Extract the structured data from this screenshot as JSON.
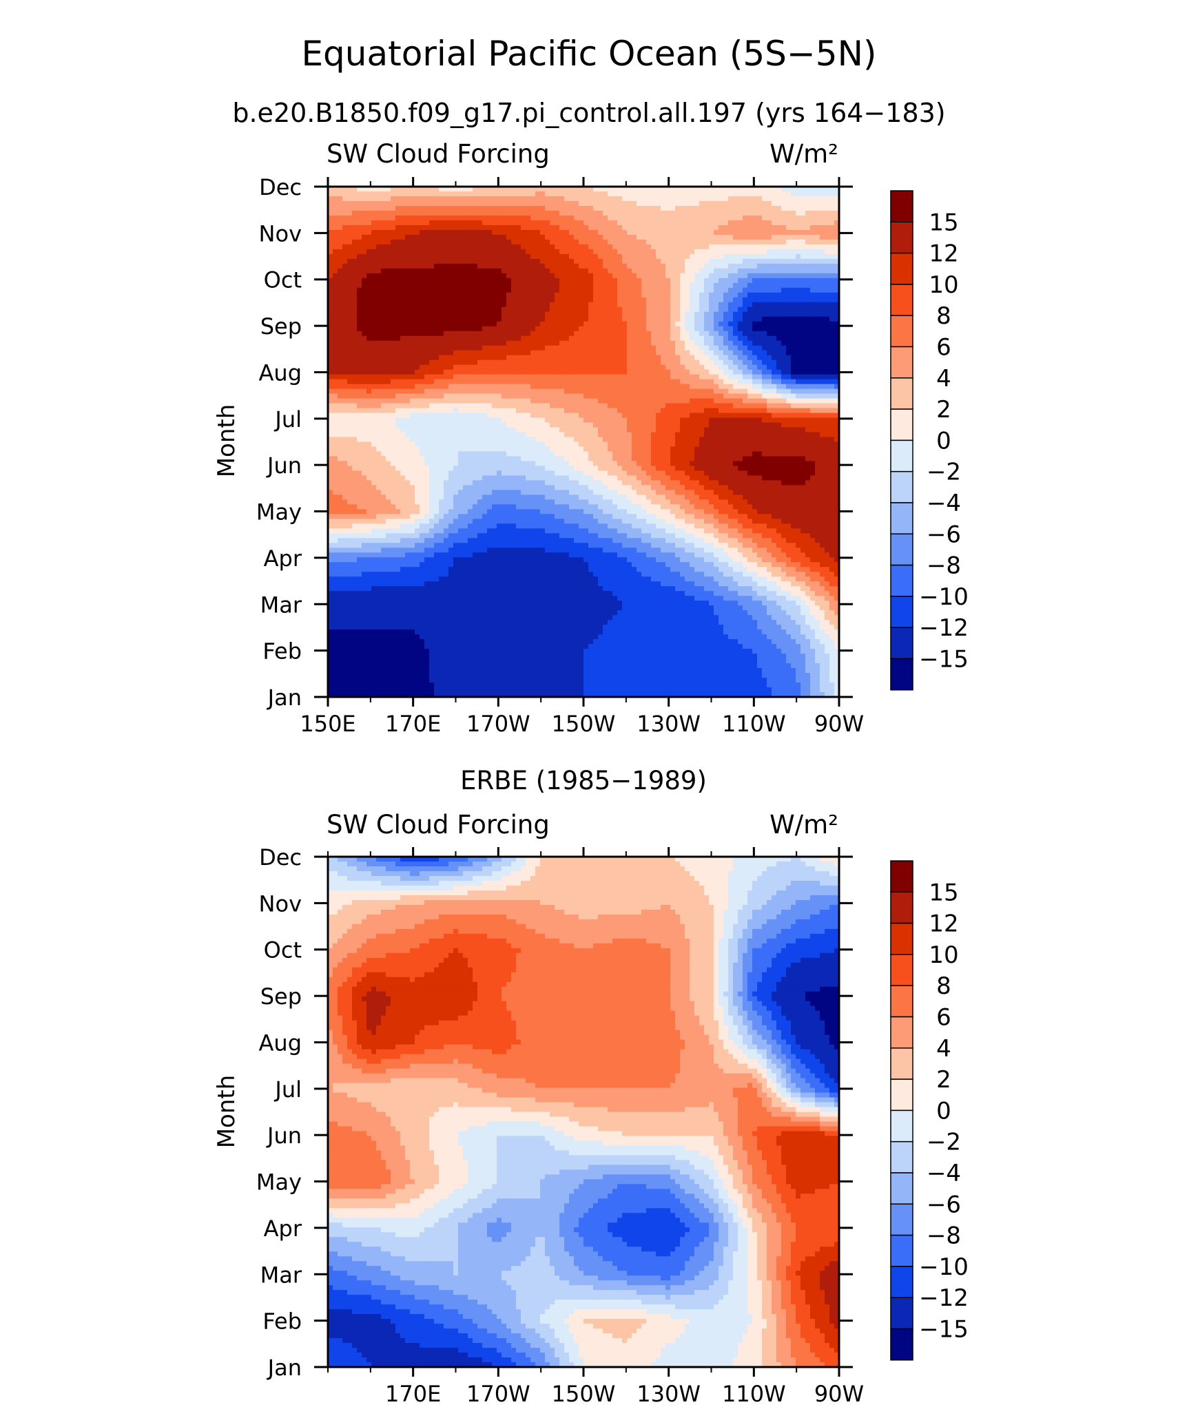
{
  "figure": {
    "title": "Equatorial Pacific Ocean (5S−5N)",
    "subtitle": "b.e20.B1850.f09_g17.pi_control.all.197 (yrs 164−183)"
  },
  "colorbar": {
    "labels": [
      "15",
      "12",
      "10",
      "8",
      "6",
      "4",
      "2",
      "0",
      "−2",
      "−4",
      "−6",
      "−8",
      "−10",
      "−12",
      "−15"
    ],
    "levels": [
      15,
      12,
      10,
      8,
      6,
      4,
      2,
      0,
      -2,
      -4,
      -6,
      -8,
      -10,
      -12,
      -15
    ],
    "colors": [
      "#800000",
      "#b01e0b",
      "#d93100",
      "#f8501c",
      "#fb7545",
      "#fc9b76",
      "#fdc5a5",
      "#feeade",
      "#dcebf9",
      "#bdd4fa",
      "#94b5f7",
      "#6692f7",
      "#3a6ef8",
      "#0f45ea",
      "#0a27b5",
      "#000584"
    ]
  },
  "chart_data": [
    {
      "type": "heatmap",
      "title": "",
      "left_label": "SW Cloud Forcing",
      "units_label": "W/m²",
      "xlabel": "",
      "ylabel": "Month",
      "x_ticklabels": [
        "150E",
        "170E",
        "170W",
        "150W",
        "130W",
        "110W",
        "90W"
      ],
      "x_tick_lon": [
        150,
        170,
        190,
        210,
        230,
        250,
        270
      ],
      "y_ticklabels": [
        "Jan",
        "Feb",
        "Mar",
        "Apr",
        "May",
        "Jun",
        "Jul",
        "Aug",
        "Sep",
        "Oct",
        "Nov",
        "Dec"
      ],
      "xlim_lon": [
        150,
        270
      ],
      "ylim_month": [
        1,
        12
      ],
      "grid_lon": [
        150,
        160,
        170,
        180,
        190,
        200,
        210,
        220,
        230,
        240,
        250,
        260,
        270
      ],
      "grid_month": [
        "Jan",
        "Feb",
        "Mar",
        "Apr",
        "May",
        "Jun",
        "Jul",
        "Aug",
        "Sep",
        "Oct",
        "Nov",
        "Dec"
      ],
      "values": [
        [
          -16,
          -16,
          -16,
          -14,
          -13,
          -13,
          -12,
          -12,
          -12,
          -12,
          -11,
          -9,
          -1
        ],
        [
          -16,
          -16,
          -16,
          -13,
          -13,
          -12,
          -12,
          -11,
          -11,
          -11,
          -10,
          -7,
          0
        ],
        [
          -14,
          -14,
          -14,
          -13,
          -13,
          -13,
          -13,
          -12,
          -12,
          -10,
          -7,
          -2,
          6
        ],
        [
          -7,
          -8,
          -9,
          -12,
          -13,
          -13,
          -12,
          -10,
          -7,
          -3,
          3,
          9,
          13
        ],
        [
          7,
          6,
          3,
          -5,
          -9,
          -8,
          -6,
          -2,
          2,
          7,
          12,
          14,
          14
        ],
        [
          5,
          3,
          1,
          -2,
          -3,
          -2,
          1,
          5,
          10,
          14,
          16,
          16,
          14
        ],
        [
          0,
          1,
          -1,
          -2,
          0,
          2,
          4,
          6,
          9,
          12,
          12,
          11,
          10
        ],
        [
          12,
          13,
          12,
          9,
          8,
          8,
          8,
          8,
          6,
          2,
          -6,
          -16,
          -16
        ],
        [
          13,
          16,
          16,
          16,
          15,
          12,
          10,
          8,
          4,
          -6,
          -16,
          -17,
          -16
        ],
        [
          12,
          16,
          16,
          16,
          16,
          13,
          11,
          7,
          4,
          -3,
          -8,
          -8,
          -8
        ],
        [
          8,
          10,
          12,
          13,
          12,
          10,
          7,
          4,
          3,
          4,
          6,
          4,
          6
        ],
        [
          3,
          1,
          2,
          1,
          2,
          3,
          2,
          1,
          1,
          1,
          1,
          -1,
          -2
        ]
      ]
    },
    {
      "type": "heatmap",
      "title": "ERBE (1985−1989)",
      "left_label": "SW Cloud Forcing",
      "units_label": "W/m²",
      "xlabel": "",
      "ylabel": "Month",
      "x_ticklabels": [
        "170E",
        "170W",
        "150W",
        "130W",
        "110W",
        "90W"
      ],
      "x_tick_lon": [
        170,
        190,
        210,
        230,
        250,
        270
      ],
      "y_ticklabels": [
        "Jan",
        "Feb",
        "Mar",
        "Apr",
        "May",
        "Jun",
        "Jul",
        "Aug",
        "Sep",
        "Oct",
        "Nov",
        "Dec"
      ],
      "xlim_lon": [
        150,
        270
      ],
      "ylim_month": [
        1,
        12
      ],
      "grid_lon": [
        150,
        160,
        170,
        180,
        190,
        200,
        210,
        220,
        230,
        240,
        250,
        260,
        270
      ],
      "grid_month": [
        "Jan",
        "Feb",
        "Mar",
        "Apr",
        "May",
        "Jun",
        "Jul",
        "Aug",
        "Sep",
        "Oct",
        "Nov",
        "Dec"
      ],
      "values": [
        [
          -10,
          -12,
          -13,
          -14,
          -12,
          -8,
          0,
          1,
          -1,
          -1,
          1,
          6,
          9
        ],
        [
          -13,
          -13,
          -11,
          -9,
          -6,
          -2,
          2,
          3,
          1,
          -1,
          0,
          8,
          13
        ],
        [
          -9,
          -7,
          -5,
          -4,
          -4,
          -3,
          -6,
          -8,
          -9,
          -5,
          1,
          10,
          14
        ],
        [
          -3,
          -2,
          -1,
          -4,
          -7,
          -4,
          -9,
          -11,
          -12,
          -8,
          2,
          8,
          8
        ],
        [
          8,
          8,
          4,
          1,
          -2,
          -4,
          -6,
          -8,
          -7,
          -2,
          6,
          11,
          10
        ],
        [
          7,
          6,
          3,
          0,
          -2,
          -2,
          1,
          2,
          2,
          2,
          8,
          12,
          10
        ],
        [
          4,
          3,
          2,
          3,
          5,
          6,
          6,
          6,
          6,
          5,
          7,
          -6,
          -12
        ],
        [
          5,
          12,
          10,
          8,
          9,
          7,
          7,
          8,
          7,
          4,
          -4,
          -12,
          -16
        ],
        [
          7,
          13,
          11,
          12,
          8,
          7,
          8,
          7,
          6,
          2,
          -10,
          -15,
          -16
        ],
        [
          4,
          7,
          8,
          10,
          9,
          7,
          6,
          7,
          6,
          2,
          -8,
          -11,
          -12
        ],
        [
          1,
          3,
          4,
          5,
          5,
          4,
          3,
          3,
          4,
          2,
          -3,
          -6,
          -8
        ],
        [
          -3,
          -8,
          -12,
          -10,
          -5,
          2,
          3,
          3,
          2,
          1,
          -1,
          -2,
          2
        ]
      ]
    }
  ]
}
